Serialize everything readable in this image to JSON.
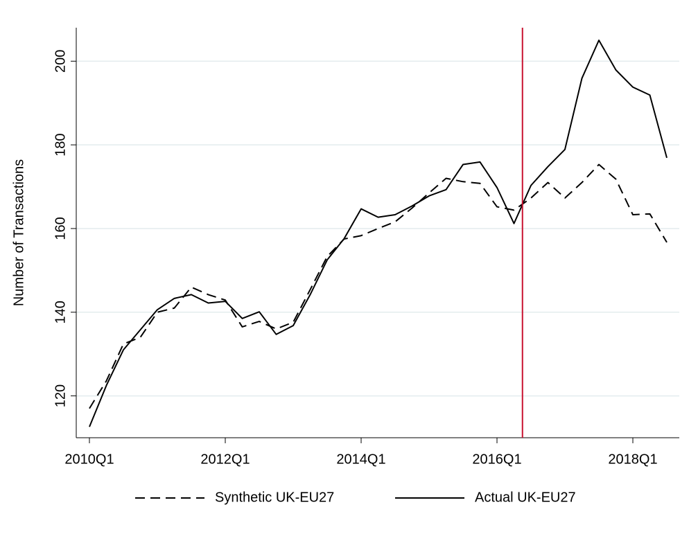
{
  "chart_data": {
    "type": "line",
    "ylabel": "Number of Transactions",
    "categories": [
      "2010Q1",
      null,
      null,
      null,
      null,
      null,
      null,
      null,
      "2012Q1",
      null,
      null,
      null,
      null,
      null,
      null,
      null,
      "2014Q1",
      null,
      null,
      null,
      null,
      null,
      null,
      null,
      "2016Q1",
      null,
      null,
      null,
      null,
      null,
      null,
      null,
      "2018Q1",
      null,
      null
    ],
    "series": [
      {
        "name": "Synthetic UK-EU27",
        "color": "#000000",
        "dash": true,
        "values": [
          117,
          123.6,
          132.4,
          134,
          140,
          141,
          146,
          144.2,
          142.9,
          136.5,
          137.8,
          136,
          137.6,
          145.4,
          153.3,
          157.5,
          158.3,
          160,
          161.6,
          164.9,
          168.5,
          172,
          171.2,
          170.8,
          165.2,
          164.4,
          167.3,
          171,
          167.3,
          171,
          175.3,
          171.8,
          163.3,
          163.5,
          156.7
        ]
      },
      {
        "name": "Actual UK-EU27",
        "color": "#000000",
        "dash": false,
        "values": [
          112.6,
          122.5,
          131,
          135.8,
          140.6,
          143.3,
          144.2,
          142.2,
          142.6,
          138.5,
          140.1,
          134.7,
          136.8,
          144.2,
          152.5,
          157.6,
          164.7,
          162.7,
          163.3,
          165.4,
          167.8,
          169.3,
          175.3,
          175.9,
          169.8,
          161.2,
          170.3,
          174.8,
          178.9,
          195.9,
          205,
          197.9,
          193.8,
          191.9,
          176.9
        ]
      }
    ],
    "reference_line": {
      "x": 25.5,
      "color": "#c8102e"
    },
    "ylim": [
      110,
      208
    ],
    "yticks": [
      120,
      140,
      160,
      180,
      200
    ],
    "grid": true,
    "legend": "bottom"
  }
}
